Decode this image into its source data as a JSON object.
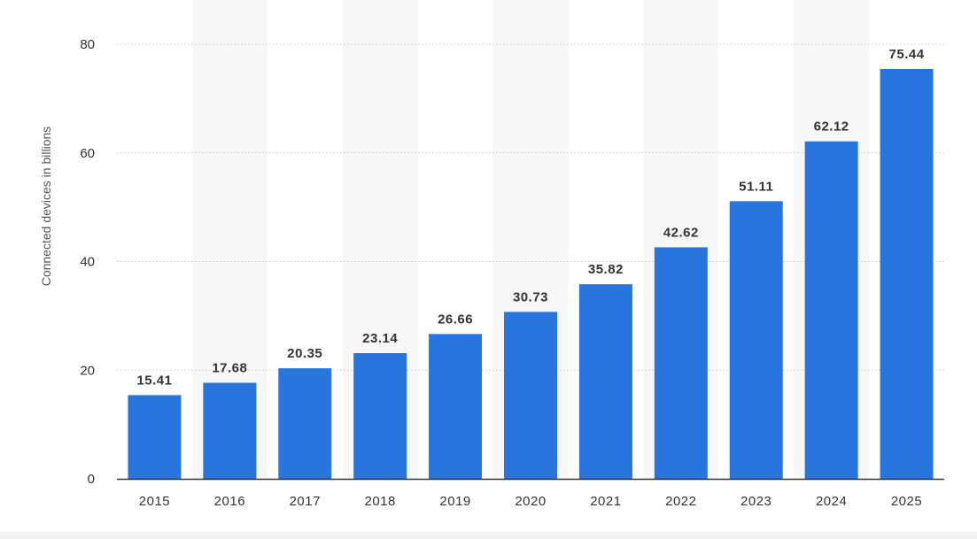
{
  "chart_data": {
    "type": "bar",
    "title": "",
    "xlabel": "",
    "ylabel": "Connected devices in billions",
    "categories": [
      "2015",
      "2016",
      "2017",
      "2018",
      "2019",
      "2020",
      "2021",
      "2022",
      "2023",
      "2024",
      "2025"
    ],
    "values": [
      15.41,
      17.68,
      20.35,
      23.14,
      26.66,
      30.73,
      35.82,
      42.62,
      51.11,
      62.12,
      75.44
    ],
    "value_labels": [
      "15.41",
      "17.68",
      "20.35",
      "23.14",
      "26.66",
      "30.73",
      "35.82",
      "42.62",
      "51.11",
      "62.12",
      "75.44"
    ],
    "ylim": [
      0,
      80
    ],
    "yticks": [
      "0",
      "20",
      "40",
      "60",
      "80"
    ],
    "grid": true,
    "legend": "none",
    "colors": {
      "bar": "#2876dd",
      "alt_column_band": "#f7f7f7",
      "gridline": "#c8c8c8",
      "axis": "#333333"
    }
  }
}
